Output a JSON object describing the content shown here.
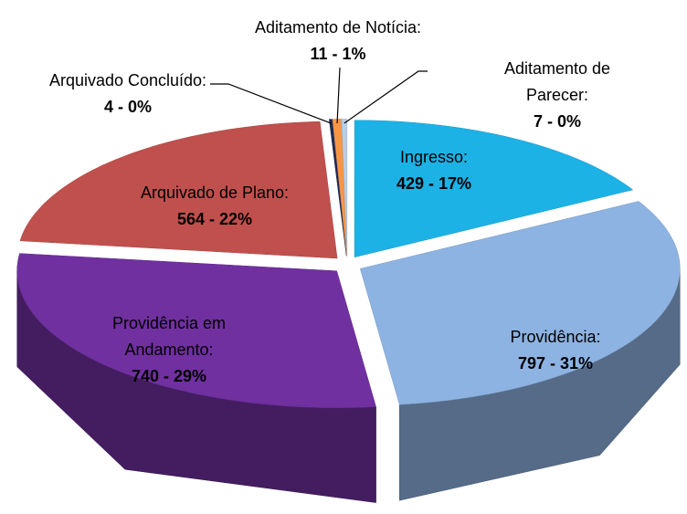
{
  "chart_data": {
    "type": "pie",
    "categories": [
      "Ingresso:",
      "Providência:",
      "Providência em Andamento:",
      "Arquivado de Plano:",
      "Arquivado Concluído:",
      "Aditamento de Notícia:",
      "Aditamento de Parecer:"
    ],
    "values": [
      429,
      797,
      740,
      564,
      4,
      11,
      7
    ],
    "value_labels": [
      "429 - 17%",
      "797 - 31%",
      "740 - 29%",
      "564 - 22%",
      "4 - 0%",
      "11 - 1%",
      "7 - 0%"
    ],
    "colors": [
      "#1cb2e6",
      "#8db3e2",
      "#7030a0",
      "#c0504d",
      "#1f2a55",
      "#f79646",
      "#b9cde5"
    ]
  }
}
